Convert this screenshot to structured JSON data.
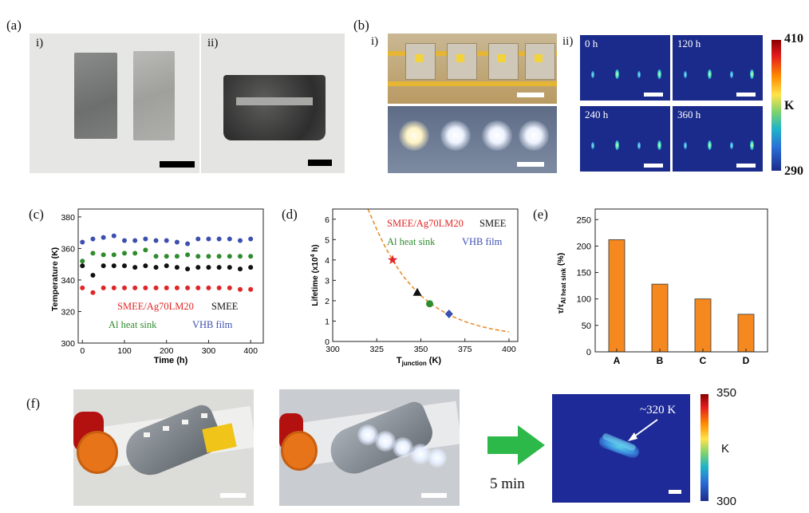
{
  "panels": {
    "a": {
      "label": "(a)",
      "sub_i": "i)",
      "sub_ii": "ii)"
    },
    "b": {
      "label": "(b)",
      "sub_i": "i)",
      "sub_ii": "ii)",
      "thermal_tiles": [
        "0 h",
        "120 h",
        "240 h",
        "360 h"
      ],
      "colorbar": {
        "max": "410",
        "unit": "K",
        "min": "290"
      }
    },
    "c": {
      "label": "(c)"
    },
    "d": {
      "label": "(d)"
    },
    "e": {
      "label": "(e)"
    },
    "f": {
      "label": "(f)",
      "arrow_caption": "5 min",
      "annotation": "~320 K",
      "colorbar": {
        "max": "350",
        "unit": "K",
        "min": "300"
      }
    }
  },
  "chart_data": [
    {
      "id": "c",
      "type": "scatter",
      "xlabel": "Time (h)",
      "ylabel": "Temperature (K)",
      "xlim": [
        -10,
        430
      ],
      "ylim": [
        300,
        385
      ],
      "xticks": [
        0,
        100,
        200,
        300,
        400
      ],
      "yticks": [
        300,
        320,
        340,
        360,
        380
      ],
      "x": [
        0,
        25,
        50,
        75,
        100,
        125,
        150,
        175,
        200,
        225,
        250,
        275,
        300,
        325,
        350,
        375,
        400
      ],
      "series": [
        {
          "name": "VHB film",
          "color": "#3b4fb0",
          "values": [
            364,
            366,
            367,
            368,
            365,
            365,
            366,
            365,
            365,
            364,
            363,
            366,
            366,
            366,
            366,
            365,
            366
          ]
        },
        {
          "name": "Al heat sink",
          "color": "#2e8b2e",
          "values": [
            352,
            357,
            356,
            356,
            357,
            357,
            359,
            355,
            355,
            355,
            356,
            355,
            355,
            355,
            355,
            355,
            355
          ]
        },
        {
          "name": "SMEE",
          "color": "#111111",
          "values": [
            349,
            343,
            349,
            349,
            349,
            348,
            349,
            348,
            349,
            348,
            347,
            348,
            348,
            348,
            348,
            347,
            348
          ]
        },
        {
          "name": "SMEE/Ag70LM20",
          "color": "#e02525",
          "values": [
            335,
            332,
            335,
            335,
            335,
            335,
            335,
            335,
            335,
            335,
            335,
            335,
            335,
            335,
            335,
            334,
            334
          ]
        }
      ],
      "legend": [
        "SMEE/Ag70LM20",
        "SMEE",
        "Al heat sink",
        "VHB film"
      ]
    },
    {
      "id": "d",
      "type": "line",
      "xlabel": "T",
      "xlabel_sub": "junction",
      "xlabel_unit": " (K)",
      "ylabel": "Lifetime (x10",
      "ylabel_sup": "4",
      "ylabel_unit": " h)",
      "xlim": [
        300,
        405
      ],
      "ylim": [
        0,
        6.5
      ],
      "xticks": [
        300,
        325,
        350,
        375,
        400
      ],
      "yticks": [
        0,
        1,
        2,
        3,
        4,
        5,
        6
      ],
      "curve": {
        "x": [
          320,
          325,
          330,
          335,
          340,
          345,
          350,
          355,
          360,
          365,
          370,
          375,
          380,
          385,
          390,
          395,
          400
        ],
        "y": [
          6.6,
          5.5,
          4.6,
          3.85,
          3.2,
          2.7,
          2.25,
          1.9,
          1.6,
          1.35,
          1.15,
          0.98,
          0.84,
          0.72,
          0.62,
          0.54,
          0.47
        ]
      },
      "points": [
        {
          "name": "SMEE/Ag70LM20",
          "x": 334,
          "y": 4.0,
          "marker": "star",
          "color": "#e02525"
        },
        {
          "name": "SMEE",
          "x": 348,
          "y": 2.4,
          "marker": "triangle",
          "color": "#111111"
        },
        {
          "name": "Al heat sink",
          "x": 355,
          "y": 1.85,
          "marker": "circle",
          "color": "#2e8b2e"
        },
        {
          "name": "VHB film",
          "x": 366,
          "y": 1.35,
          "marker": "diamond",
          "color": "#3b4fb0"
        }
      ],
      "legend": [
        "SMEE/Ag70LM20",
        "SMEE",
        "Al heat sink",
        "VHB film"
      ]
    },
    {
      "id": "e",
      "type": "bar",
      "ylabel": "τ/τ",
      "ylabel_sub": "Al heat sink",
      "ylabel_unit": " (%)",
      "categories": [
        "A",
        "B",
        "C",
        "D"
      ],
      "values": [
        212,
        128,
        100,
        71
      ],
      "ylim": [
        0,
        270
      ],
      "yticks": [
        0,
        50,
        100,
        150,
        200,
        250
      ],
      "color": "#f5891f"
    }
  ]
}
